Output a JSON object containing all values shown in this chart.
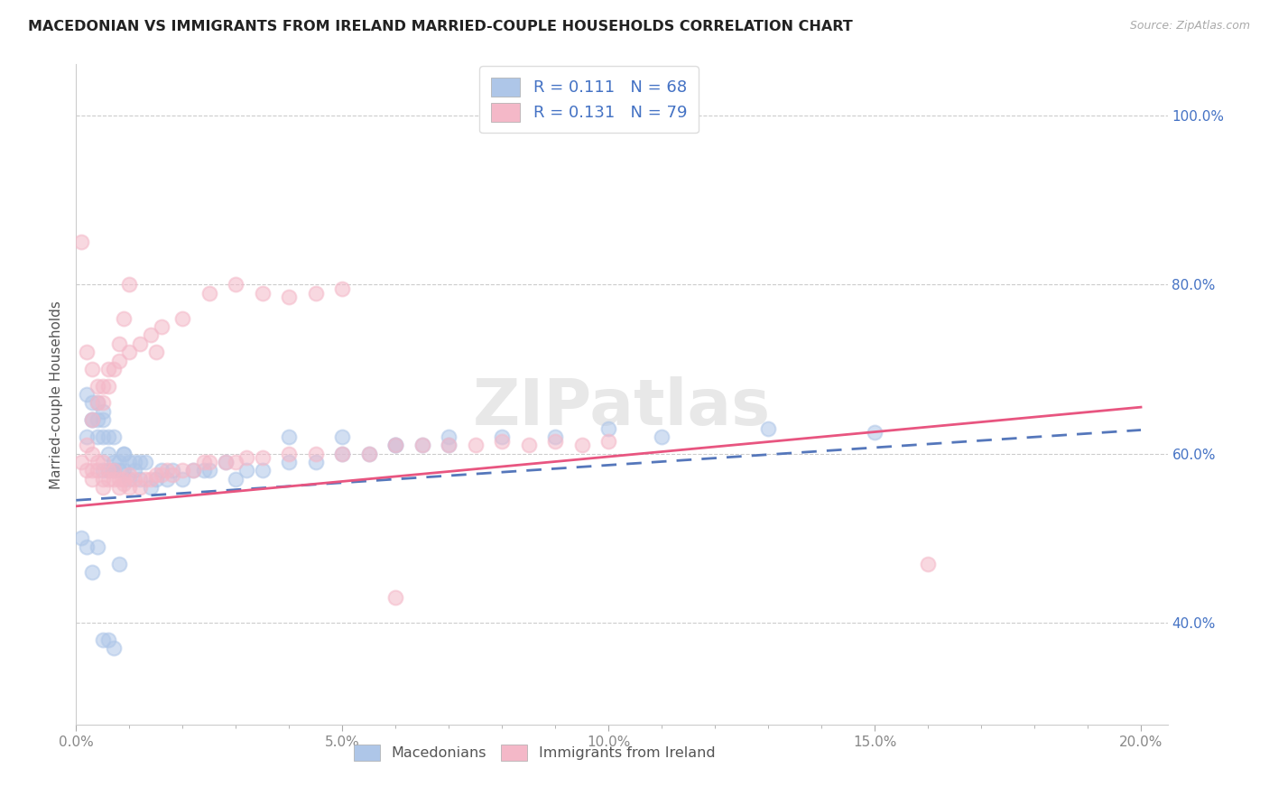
{
  "title": "MACEDONIAN VS IMMIGRANTS FROM IRELAND MARRIED-COUPLE HOUSEHOLDS CORRELATION CHART",
  "source": "Source: ZipAtlas.com",
  "ylabel": "Married-couple Households",
  "xlim": [
    0.0,
    0.205
  ],
  "ylim": [
    0.28,
    1.06
  ],
  "ytick_labels": [
    "40.0%",
    "60.0%",
    "80.0%",
    "100.0%"
  ],
  "ytick_vals": [
    0.4,
    0.6,
    0.8,
    1.0
  ],
  "xtick_labels": [
    "0.0%",
    "",
    "",
    "",
    "",
    "5.0%",
    "",
    "",
    "",
    "",
    "10.0%",
    "",
    "",
    "",
    "",
    "15.0%",
    "",
    "",
    "",
    "",
    "20.0%"
  ],
  "xtick_vals": [
    0.0,
    0.01,
    0.02,
    0.03,
    0.04,
    0.05,
    0.06,
    0.07,
    0.08,
    0.09,
    0.1,
    0.11,
    0.12,
    0.13,
    0.14,
    0.15,
    0.16,
    0.17,
    0.18,
    0.19,
    0.2
  ],
  "xtick_major_labels": [
    "0.0%",
    "5.0%",
    "10.0%",
    "15.0%",
    "20.0%"
  ],
  "xtick_major_vals": [
    0.0,
    0.05,
    0.1,
    0.15,
    0.2
  ],
  "color_macedonian": "#aec6e8",
  "color_ireland": "#f4b8c8",
  "color_line_macedonian": "#5577bb",
  "color_line_ireland": "#e85580",
  "watermark": "ZIPatlas",
  "mac_line_x0": 0.0,
  "mac_line_y0": 0.545,
  "mac_line_x1": 0.2,
  "mac_line_y1": 0.628,
  "ire_line_x0": 0.0,
  "ire_line_y0": 0.538,
  "ire_line_x1": 0.2,
  "ire_line_y1": 0.655,
  "macedonian_x": [
    0.002,
    0.002,
    0.003,
    0.003,
    0.003,
    0.004,
    0.004,
    0.004,
    0.005,
    0.005,
    0.005,
    0.005,
    0.006,
    0.006,
    0.006,
    0.007,
    0.007,
    0.007,
    0.008,
    0.008,
    0.009,
    0.009,
    0.009,
    0.01,
    0.01,
    0.011,
    0.011,
    0.012,
    0.012,
    0.013,
    0.014,
    0.015,
    0.016,
    0.017,
    0.018,
    0.02,
    0.022,
    0.024,
    0.025,
    0.028,
    0.03,
    0.032,
    0.035,
    0.04,
    0.045,
    0.05,
    0.055,
    0.06,
    0.065,
    0.07,
    0.001,
    0.002,
    0.003,
    0.004,
    0.005,
    0.006,
    0.007,
    0.008,
    0.04,
    0.05,
    0.06,
    0.07,
    0.08,
    0.09,
    0.1,
    0.11,
    0.13,
    0.15
  ],
  "macedonian_y": [
    0.62,
    0.67,
    0.64,
    0.66,
    0.64,
    0.64,
    0.66,
    0.62,
    0.64,
    0.65,
    0.62,
    0.58,
    0.58,
    0.6,
    0.62,
    0.59,
    0.58,
    0.62,
    0.59,
    0.58,
    0.6,
    0.58,
    0.6,
    0.57,
    0.59,
    0.58,
    0.59,
    0.59,
    0.57,
    0.59,
    0.56,
    0.57,
    0.58,
    0.57,
    0.58,
    0.57,
    0.58,
    0.58,
    0.58,
    0.59,
    0.57,
    0.58,
    0.58,
    0.59,
    0.59,
    0.6,
    0.6,
    0.61,
    0.61,
    0.61,
    0.5,
    0.49,
    0.46,
    0.49,
    0.38,
    0.38,
    0.37,
    0.47,
    0.62,
    0.62,
    0.61,
    0.62,
    0.62,
    0.62,
    0.63,
    0.62,
    0.63,
    0.625
  ],
  "ireland_x": [
    0.001,
    0.002,
    0.002,
    0.003,
    0.003,
    0.003,
    0.004,
    0.004,
    0.005,
    0.005,
    0.005,
    0.006,
    0.006,
    0.007,
    0.007,
    0.008,
    0.008,
    0.009,
    0.009,
    0.01,
    0.01,
    0.011,
    0.012,
    0.013,
    0.014,
    0.015,
    0.016,
    0.017,
    0.018,
    0.02,
    0.022,
    0.024,
    0.025,
    0.028,
    0.03,
    0.032,
    0.035,
    0.04,
    0.045,
    0.05,
    0.055,
    0.06,
    0.065,
    0.07,
    0.075,
    0.08,
    0.085,
    0.09,
    0.095,
    0.1,
    0.001,
    0.002,
    0.003,
    0.004,
    0.005,
    0.006,
    0.007,
    0.008,
    0.009,
    0.01,
    0.015,
    0.02,
    0.025,
    0.03,
    0.035,
    0.04,
    0.045,
    0.05,
    0.06,
    0.16,
    0.003,
    0.004,
    0.005,
    0.006,
    0.008,
    0.01,
    0.012,
    0.014,
    0.016
  ],
  "ireland_y": [
    0.59,
    0.61,
    0.58,
    0.6,
    0.58,
    0.57,
    0.59,
    0.58,
    0.59,
    0.57,
    0.56,
    0.58,
    0.57,
    0.58,
    0.57,
    0.57,
    0.56,
    0.565,
    0.57,
    0.575,
    0.56,
    0.57,
    0.56,
    0.57,
    0.57,
    0.575,
    0.575,
    0.58,
    0.575,
    0.58,
    0.58,
    0.59,
    0.59,
    0.59,
    0.59,
    0.595,
    0.595,
    0.6,
    0.6,
    0.6,
    0.6,
    0.61,
    0.61,
    0.61,
    0.61,
    0.615,
    0.61,
    0.615,
    0.61,
    0.615,
    0.85,
    0.72,
    0.7,
    0.68,
    0.66,
    0.68,
    0.7,
    0.73,
    0.76,
    0.8,
    0.72,
    0.76,
    0.79,
    0.8,
    0.79,
    0.785,
    0.79,
    0.795,
    0.43,
    0.47,
    0.64,
    0.66,
    0.68,
    0.7,
    0.71,
    0.72,
    0.73,
    0.74,
    0.75
  ]
}
